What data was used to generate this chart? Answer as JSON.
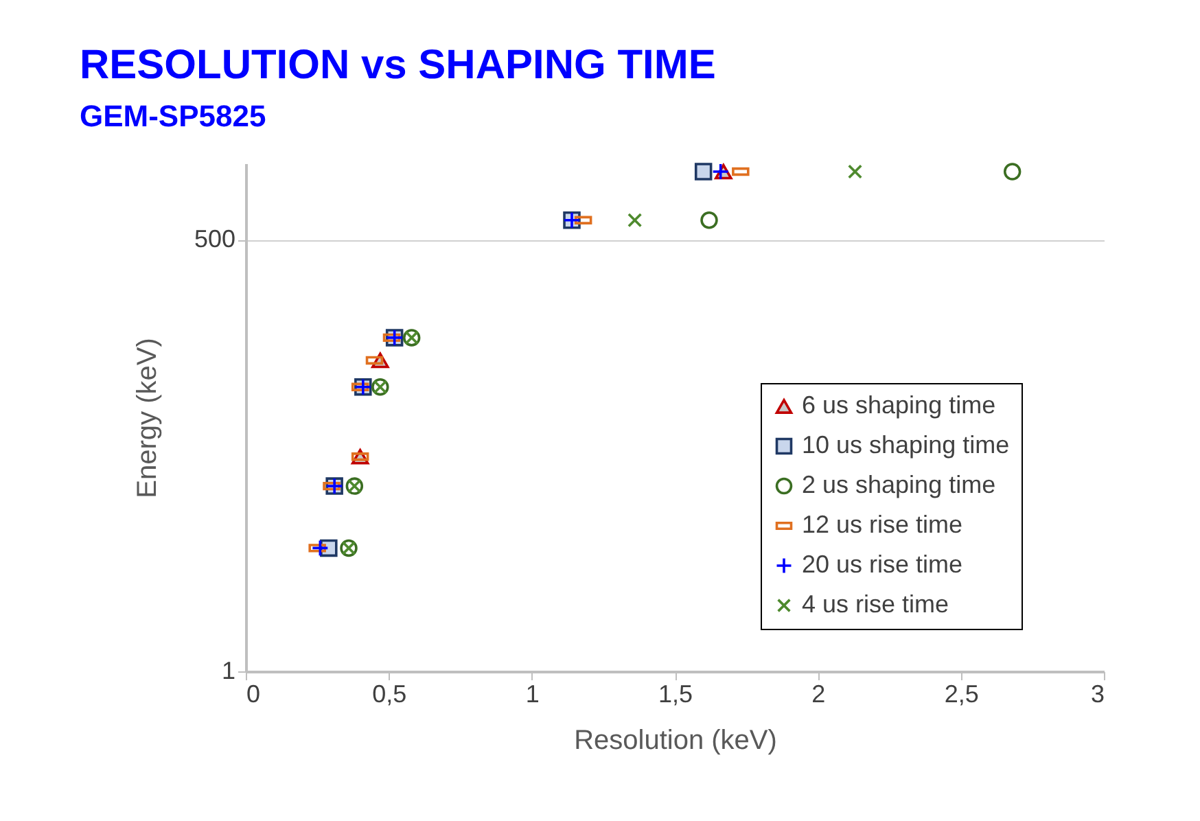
{
  "chart_data": {
    "type": "scatter",
    "title": "RESOLUTION vs SHAPING TIME",
    "subtitle": "GEM-SP5825",
    "xlabel": "Resolution (keV)",
    "ylabel": "Energy (keV)",
    "xlim": [
      0,
      3
    ],
    "xticks": [
      0,
      {
        "value": 0.5,
        "label": "0,5"
      },
      1,
      {
        "value": 1.5,
        "label": "1,5"
      },
      2,
      {
        "value": 2.5,
        "label": "2,5"
      },
      3
    ],
    "ylim": [
      1,
      1500
    ],
    "yticks": [
      1,
      500
    ],
    "log": "y",
    "grid": "y",
    "legend": "bottom right",
    "series": [
      {
        "name": "6 us shaping time",
        "color": "#c00000",
        "marker": "triangle",
        "x": [
          0.4,
          0.47,
          1.67
        ],
        "values": [
          22,
          88,
          1332
        ]
      },
      {
        "name": "10 us shaping time",
        "color": "#1f3864",
        "marker": "square",
        "x": [
          0.29,
          0.31,
          0.41,
          0.52,
          1.14,
          1.6
        ],
        "values": [
          5.9,
          14.4,
          60,
          122,
          662,
          1332
        ]
      },
      {
        "name": "2 us shaping time",
        "color": "#3b6e22",
        "marker": "circle",
        "x": [
          0.36,
          0.38,
          0.47,
          0.58,
          1.62,
          2.68
        ],
        "values": [
          5.9,
          14.4,
          60,
          122,
          662,
          1332
        ]
      },
      {
        "name": "12 us rise time",
        "color": "#e07020",
        "x": [
          0.25,
          0.3,
          0.4,
          0.4,
          0.45,
          0.51,
          1.18,
          1.73
        ],
        "values": [
          5.9,
          14.4,
          22,
          60,
          88,
          122,
          662,
          1332
        ]
      },
      {
        "name": "20 us rise time",
        "color": "#0000ff",
        "marker": "cross",
        "x": [
          0.26,
          0.31,
          0.41,
          0.52,
          1.14,
          1.66
        ],
        "values": [
          5.9,
          14.4,
          60,
          122,
          662,
          1332
        ]
      },
      {
        "name": "4 us rise time",
        "color": "#4e8a2e",
        "marker": "x",
        "x": [
          0.36,
          0.38,
          0.47,
          0.58,
          1.36,
          2.13
        ],
        "values": [
          5.9,
          14.4,
          60,
          122,
          662,
          1332
        ]
      }
    ]
  }
}
